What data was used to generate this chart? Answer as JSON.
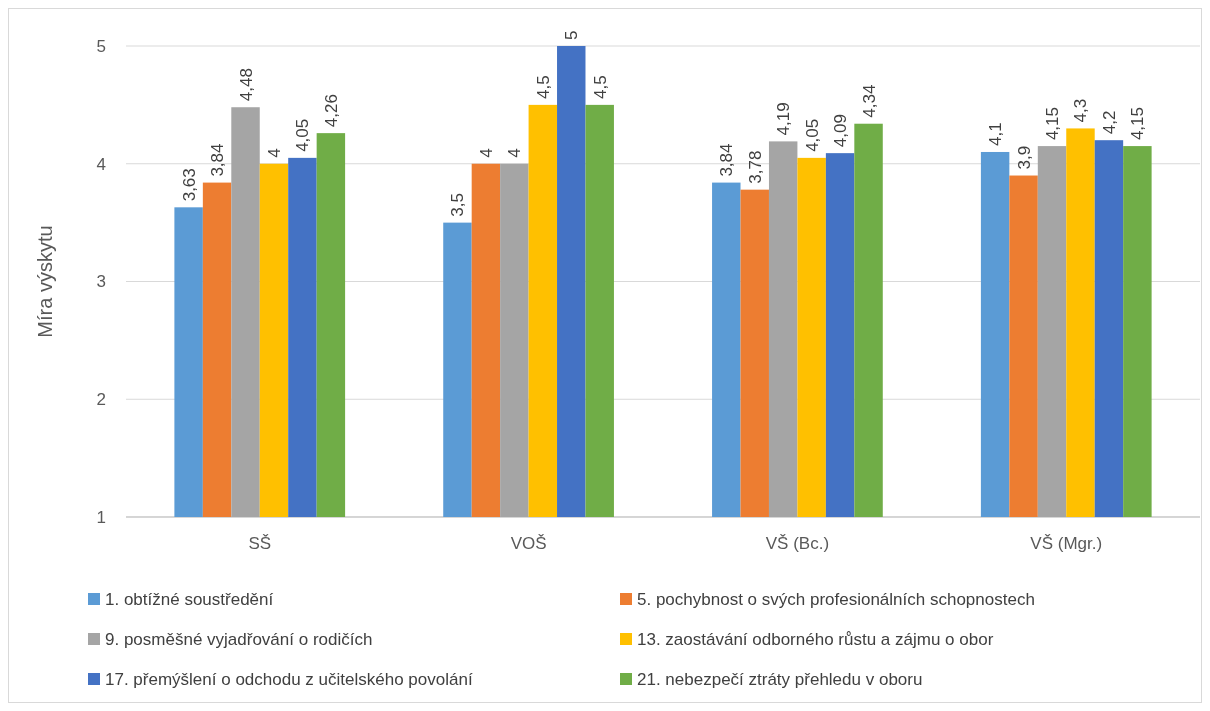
{
  "chart_data": {
    "type": "bar",
    "ylabel": "Míra výskytu",
    "categories": [
      "SŠ",
      "VOŠ",
      "VŠ (Bc.)",
      "VŠ (Mgr.)"
    ],
    "ylim": [
      1,
      5
    ],
    "yticks": [
      1,
      2,
      3,
      4,
      5
    ],
    "grid": "y",
    "legend": "bottom",
    "series": [
      {
        "name": "1. obtížné soustředění",
        "color": "#5b9bd5",
        "values": [
          3.63,
          3.5,
          3.84,
          4.1
        ],
        "value_labels": [
          "3,63",
          "3,5",
          "3,84",
          "4,1"
        ]
      },
      {
        "name": "5. pochybnost o svých profesionálních schopnostech",
        "color": "#ed7d31",
        "values": [
          3.84,
          4,
          3.78,
          3.9
        ],
        "value_labels": [
          "3,84",
          "4",
          "3,78",
          "3,9"
        ]
      },
      {
        "name": "9. posměšné vyjadřování o rodičích",
        "color": "#a5a5a5",
        "values": [
          4.48,
          4,
          4.19,
          4.15
        ],
        "value_labels": [
          "4,48",
          "4",
          "4,19",
          "4,15"
        ]
      },
      {
        "name": "13. zaostávání odborného růstu a zájmu o obor",
        "color": "#ffc000",
        "values": [
          4,
          4.5,
          4.05,
          4.3
        ],
        "value_labels": [
          "4",
          "4,5",
          "4,05",
          "4,3"
        ]
      },
      {
        "name": "17. přemýšlení o odchodu z učitelského povolání",
        "color": "#4472c4",
        "values": [
          4.05,
          5,
          4.09,
          4.2
        ],
        "value_labels": [
          "4,05",
          "5",
          "4,09",
          "4,2"
        ]
      },
      {
        "name": "21. nebezpečí ztráty přehledu v oboru",
        "color": "#70ad47",
        "values": [
          4.26,
          4.5,
          4.34,
          4.15
        ],
        "value_labels": [
          "4,26",
          "4,5",
          "4,34",
          "4,15"
        ]
      }
    ]
  }
}
